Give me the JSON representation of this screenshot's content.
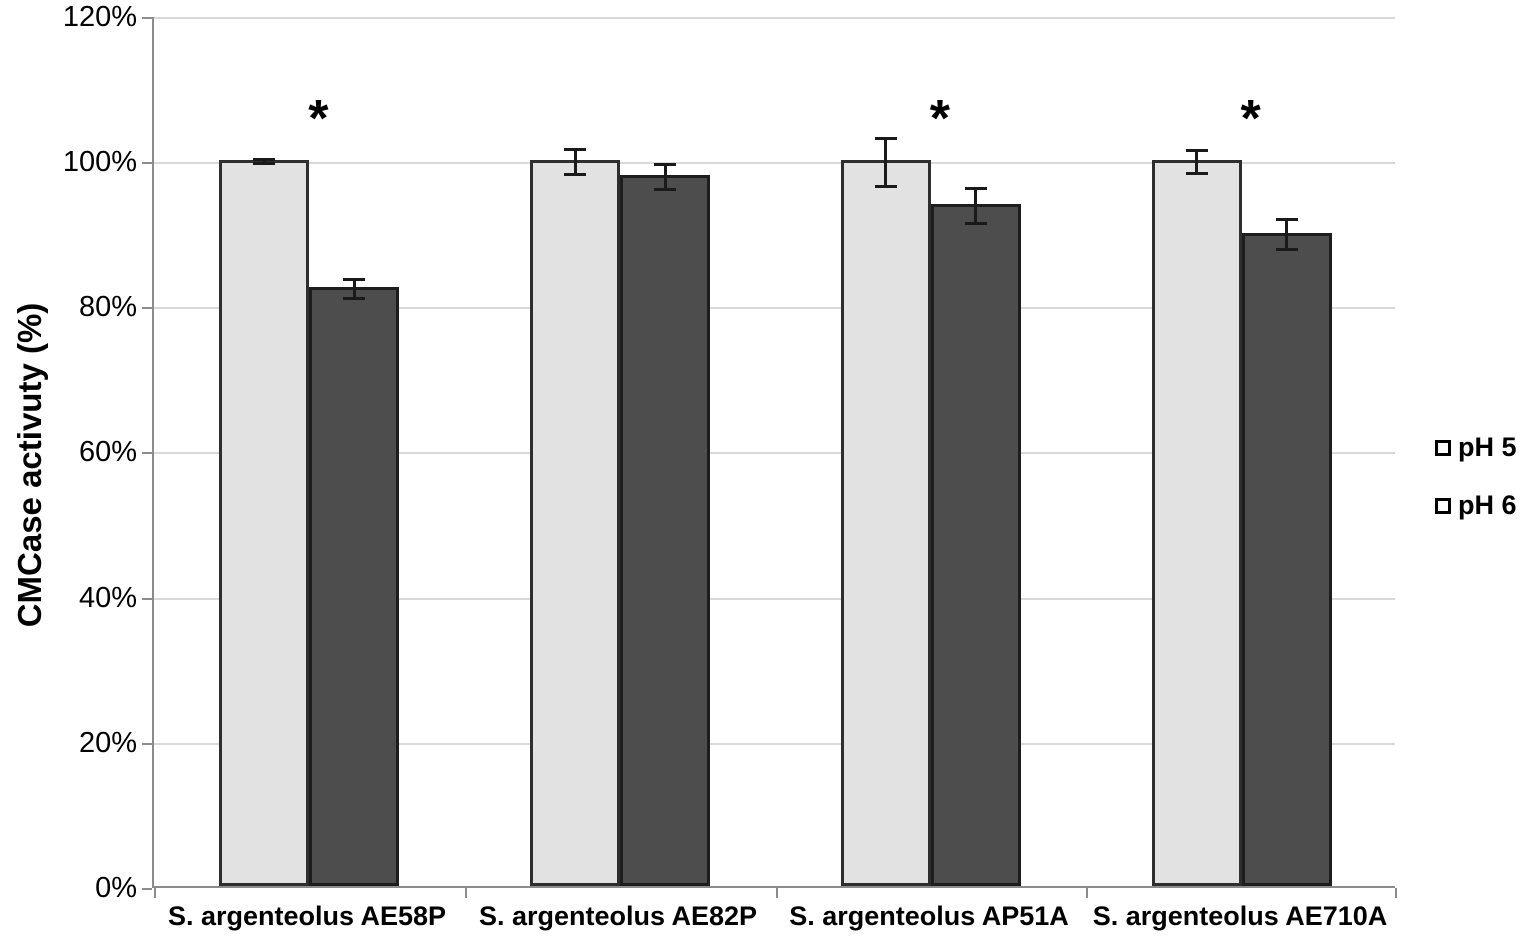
{
  "chart_data": {
    "type": "bar",
    "title": "",
    "xlabel": "",
    "ylabel": "CMCase activuty (%)",
    "categories": [
      "S. argenteolus AE58P",
      "S. argenteolus AE82P",
      "S. argenteolus AP51A",
      "S. argenteolus AE710A"
    ],
    "series": [
      {
        "name": "pH 5",
        "values": [
          100,
          100,
          100,
          100
        ],
        "errors": [
          0.5,
          1.9,
          3.5,
          1.8
        ],
        "fill": "#e2e2e2",
        "border": "#2e2e2e"
      },
      {
        "name": "pH 6",
        "values": [
          82.5,
          98,
          94,
          90
        ],
        "errors": [
          1.5,
          1.9,
          2.6,
          2.3
        ],
        "fill": "#4d4d4d",
        "border": "#1d1d1d"
      }
    ],
    "significance_symbol": "*",
    "significant_groups": [
      true,
      false,
      true,
      true
    ],
    "y_ticks": [
      "0%",
      "20%",
      "40%",
      "60%",
      "80%",
      "100%",
      "120%"
    ],
    "ylim": [
      0,
      120
    ],
    "grid": true,
    "legend_position": "right",
    "colors": {
      "gridline": "#d9d9d9",
      "axis": "#8c8c8c",
      "error_bar": "#1a1a1a",
      "text": "#000000"
    }
  }
}
